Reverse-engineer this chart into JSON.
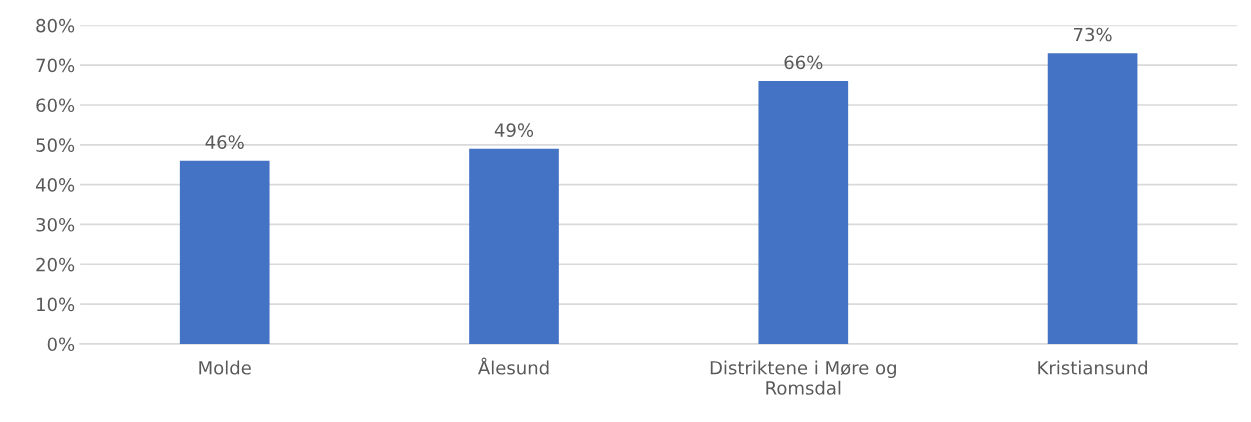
{
  "chart_data": {
    "type": "bar",
    "categories": [
      "Molde",
      "Ålesund",
      "Distriktene i Møre og\nRomsdal",
      "Kristiansund"
    ],
    "values": [
      46,
      49,
      66,
      73
    ],
    "value_labels": [
      "46%",
      "49%",
      "66%",
      "73%"
    ],
    "color": "#4472c4",
    "ylim": [
      0,
      80
    ],
    "yticks": [
      {
        "value": 0,
        "label": "0%"
      },
      {
        "value": 10,
        "label": "10%"
      },
      {
        "value": 20,
        "label": "20%"
      },
      {
        "value": 30,
        "label": "30%"
      },
      {
        "value": 40,
        "label": "40%"
      },
      {
        "value": 50,
        "label": "50%"
      },
      {
        "value": 60,
        "label": "60%"
      },
      {
        "value": 70,
        "label": "70%"
      },
      {
        "value": 80,
        "label": "80%"
      }
    ],
    "grid": "y",
    "legend": false
  }
}
